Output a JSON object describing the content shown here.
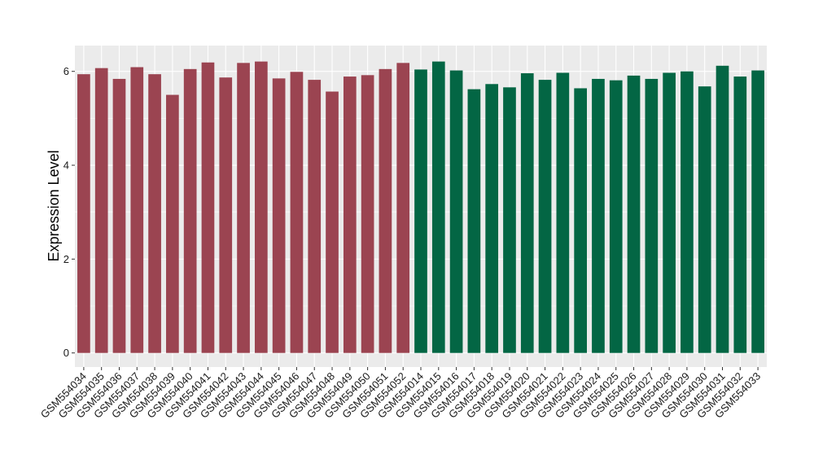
{
  "chart_data": {
    "type": "bar",
    "title": "",
    "xlabel": "",
    "ylabel": "Expression Level",
    "ylim": [
      -0.3,
      6.55
    ],
    "yticks": [
      0,
      2,
      4,
      6
    ],
    "grid": true,
    "categories": [
      "GSM554034",
      "GSM554035",
      "GSM554036",
      "GSM554037",
      "GSM554038",
      "GSM554039",
      "GSM554040",
      "GSM554041",
      "GSM554042",
      "GSM554043",
      "GSM554044",
      "GSM554045",
      "GSM554046",
      "GSM554047",
      "GSM554048",
      "GSM554049",
      "GSM554050",
      "GSM554051",
      "GSM554052",
      "GSM554014",
      "GSM554015",
      "GSM554016",
      "GSM554017",
      "GSM554018",
      "GSM554019",
      "GSM554020",
      "GSM554021",
      "GSM554022",
      "GSM554023",
      "GSM554024",
      "GSM554025",
      "GSM554026",
      "GSM554027",
      "GSM554028",
      "GSM554029",
      "GSM554030",
      "GSM554031",
      "GSM554032",
      "GSM554033"
    ],
    "values": [
      5.94,
      6.07,
      5.84,
      6.09,
      5.94,
      5.5,
      6.05,
      6.19,
      5.87,
      6.18,
      6.21,
      5.85,
      5.99,
      5.82,
      5.57,
      5.89,
      5.92,
      6.05,
      6.18,
      6.04,
      6.21,
      6.02,
      5.62,
      5.73,
      5.66,
      5.96,
      5.82,
      5.97,
      5.64,
      5.84,
      5.81,
      5.91,
      5.84,
      5.97,
      6.0,
      5.68,
      6.12,
      5.89,
      6.02
    ],
    "colors": [
      "#9b4451",
      "#9b4451",
      "#9b4451",
      "#9b4451",
      "#9b4451",
      "#9b4451",
      "#9b4451",
      "#9b4451",
      "#9b4451",
      "#9b4451",
      "#9b4451",
      "#9b4451",
      "#9b4451",
      "#9b4451",
      "#9b4451",
      "#9b4451",
      "#9b4451",
      "#9b4451",
      "#9b4451",
      "#036644",
      "#036644",
      "#036644",
      "#036644",
      "#036644",
      "#036644",
      "#036644",
      "#036644",
      "#036644",
      "#036644",
      "#036644",
      "#036644",
      "#036644",
      "#036644",
      "#036644",
      "#036644",
      "#036644",
      "#036644",
      "#036644",
      "#036644"
    ],
    "panel_background": "#ebebeb",
    "grid_color": "#ffffff"
  }
}
